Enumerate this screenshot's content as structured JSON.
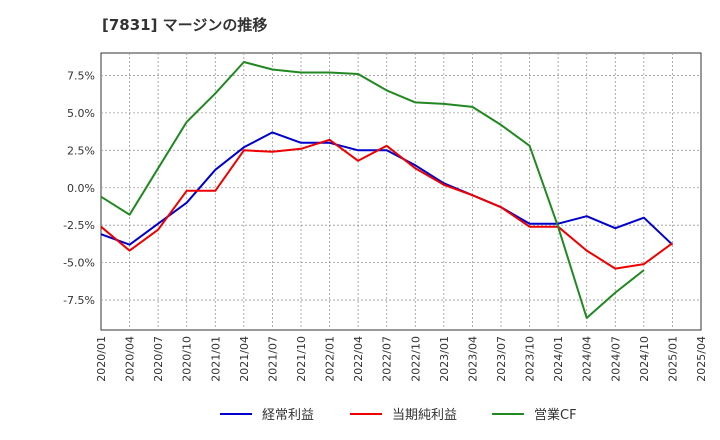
{
  "chart_data": {
    "type": "line",
    "title": "[7831]  マージンの推移",
    "xlabel": "",
    "ylabel": "",
    "ylim": [
      -9.5,
      9.0
    ],
    "yticks": [
      {
        "value": 7.5,
        "label": "7.5%"
      },
      {
        "value": 5.0,
        "label": "5.0%"
      },
      {
        "value": 2.5,
        "label": "2.5%"
      },
      {
        "value": 0.0,
        "label": "0.0%"
      },
      {
        "value": -2.5,
        "label": "-2.5%"
      },
      {
        "value": -5.0,
        "label": "-5.0%"
      },
      {
        "value": -7.5,
        "label": "-7.5%"
      }
    ],
    "categories": [
      "2020/01",
      "2020/04",
      "2020/07",
      "2020/10",
      "2021/01",
      "2021/04",
      "2021/07",
      "2021/10",
      "2022/01",
      "2022/04",
      "2022/07",
      "2022/10",
      "2023/01",
      "2023/04",
      "2023/07",
      "2023/10",
      "2024/01",
      "2024/04",
      "2024/07",
      "2024/10",
      "2025/01",
      "2025/04"
    ],
    "grid": true,
    "legend_position": "bottom",
    "series": [
      {
        "name": "経常利益",
        "color": "#0000cc",
        "values": [
          -3.1,
          -3.8,
          -2.4,
          -1.0,
          1.2,
          2.7,
          3.7,
          3.0,
          3.0,
          2.5,
          2.5,
          1.5,
          0.3,
          -0.5,
          -1.3,
          -2.4,
          -2.4,
          -1.9,
          -2.7,
          -2.0,
          -3.8,
          null
        ]
      },
      {
        "name": "当期純利益",
        "color": "#ee0000",
        "values": [
          -2.6,
          -4.2,
          -2.8,
          -0.2,
          -0.2,
          2.5,
          2.4,
          2.6,
          3.2,
          1.8,
          2.8,
          1.3,
          0.2,
          -0.5,
          -1.3,
          -2.6,
          -2.6,
          -4.2,
          -5.4,
          -5.1,
          -3.7,
          null
        ]
      },
      {
        "name": "営業CF",
        "color": "#228822",
        "values": [
          -0.6,
          -1.8,
          1.3,
          4.4,
          6.3,
          8.4,
          7.9,
          7.7,
          7.7,
          7.6,
          6.5,
          5.7,
          5.6,
          5.4,
          4.2,
          2.8,
          -2.6,
          -8.7,
          -7.0,
          -5.5,
          null,
          null
        ]
      }
    ]
  }
}
